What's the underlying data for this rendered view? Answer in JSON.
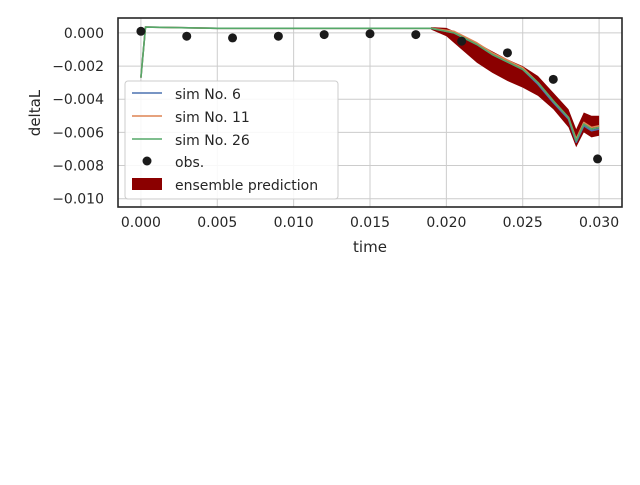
{
  "chart_data": {
    "type": "line",
    "xlabel": "time",
    "ylabel": "deltaL",
    "xlim": [
      -0.0015,
      0.0315
    ],
    "ylim": [
      -0.0105,
      0.0009
    ],
    "xticks": [
      0.0,
      0.005,
      0.01,
      0.015,
      0.02,
      0.025,
      0.03
    ],
    "xtick_labels": [
      "0.000",
      "0.005",
      "0.010",
      "0.015",
      "0.020",
      "0.025",
      "0.030"
    ],
    "yticks": [
      0.0,
      -0.002,
      -0.004,
      -0.006,
      -0.008,
      -0.01
    ],
    "ytick_labels": [
      "0.000",
      "−0.002",
      "−0.004",
      "−0.006",
      "−0.008",
      "−0.010"
    ],
    "grid": true,
    "legend_placement": "lower-left",
    "series": [
      {
        "name": "sim No. 6",
        "color": "#4c72b0",
        "x": [
          0.0,
          0.0003,
          0.005,
          0.01,
          0.015,
          0.019,
          0.0205,
          0.022,
          0.023,
          0.025,
          0.026,
          0.027,
          0.028,
          0.0285,
          0.029,
          0.0295,
          0.03
        ],
        "y": [
          -0.0027,
          0.00035,
          0.00028,
          0.00028,
          0.00028,
          0.00028,
          0.0,
          -0.0007,
          -0.0013,
          -0.0022,
          -0.0031,
          -0.0042,
          -0.0052,
          -0.0066,
          -0.0056,
          -0.0059,
          -0.0058
        ]
      },
      {
        "name": "sim No. 11",
        "color": "#dd8452",
        "x": [
          0.0,
          0.0003,
          0.005,
          0.01,
          0.015,
          0.019,
          0.0205,
          0.022,
          0.023,
          0.025,
          0.026,
          0.027,
          0.028,
          0.0285,
          0.029,
          0.0295,
          0.03
        ],
        "y": [
          -0.0027,
          0.00035,
          0.00028,
          0.00028,
          0.00028,
          0.00028,
          0.0001,
          -0.0006,
          -0.0012,
          -0.0021,
          -0.003,
          -0.0041,
          -0.0051,
          -0.0064,
          -0.0054,
          -0.0057,
          -0.0056
        ]
      },
      {
        "name": "sim No. 26",
        "color": "#55a868",
        "x": [
          0.0,
          0.0003,
          0.005,
          0.01,
          0.015,
          0.019,
          0.0205,
          0.022,
          0.023,
          0.025,
          0.026,
          0.027,
          0.028,
          0.0285,
          0.029,
          0.0295,
          0.03
        ],
        "y": [
          -0.0027,
          0.00035,
          0.00028,
          0.00028,
          0.00028,
          0.00028,
          0.0,
          -0.0007,
          -0.0013,
          -0.0022,
          -0.003,
          -0.0041,
          -0.0051,
          -0.0065,
          -0.0055,
          -0.0058,
          -0.0057
        ]
      }
    ],
    "observations": {
      "name": "obs.",
      "color": "#1a1a1a",
      "x": [
        0.0,
        0.003,
        0.006,
        0.009,
        0.012,
        0.015,
        0.018,
        0.021,
        0.024,
        0.027,
        0.0299
      ],
      "y": [
        0.0001,
        -0.0002,
        -0.0003,
        -0.0002,
        -0.0001,
        -5e-05,
        -0.0001,
        -0.0005,
        -0.0012,
        -0.0028,
        -0.0076
      ]
    },
    "ensemble": {
      "name": "ensemble prediction",
      "color": "#8b0000",
      "x": [
        0.019,
        0.02,
        0.021,
        0.022,
        0.023,
        0.024,
        0.025,
        0.026,
        0.027,
        0.028,
        0.0285,
        0.029,
        0.0295,
        0.03
      ],
      "upper": [
        0.00035,
        0.0003,
        -0.0001,
        -0.0006,
        -0.0011,
        -0.0016,
        -0.002,
        -0.0026,
        -0.0036,
        -0.0046,
        -0.0058,
        -0.0048,
        -0.005,
        -0.005
      ],
      "lower": [
        0.0002,
        -0.0002,
        -0.001,
        -0.0018,
        -0.0024,
        -0.0029,
        -0.0033,
        -0.0038,
        -0.0046,
        -0.0057,
        -0.0069,
        -0.006,
        -0.0063,
        -0.0062
      ]
    }
  }
}
